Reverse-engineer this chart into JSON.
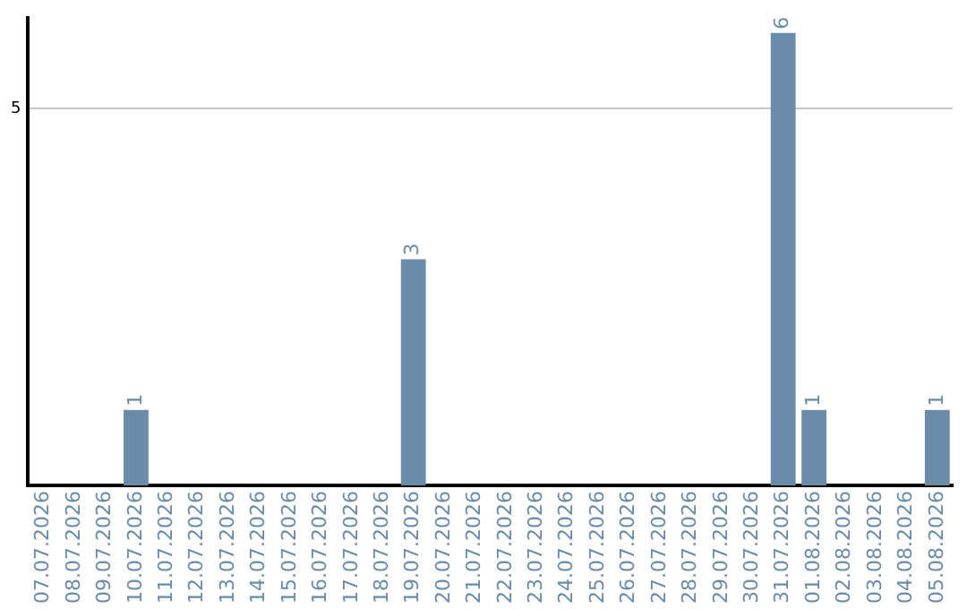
{
  "chart_data": {
    "type": "bar",
    "categories": [
      "07.07.2026",
      "08.07.2026",
      "09.07.2026",
      "10.07.2026",
      "11.07.2026",
      "12.07.2026",
      "13.07.2026",
      "14.07.2026",
      "15.07.2026",
      "16.07.2026",
      "17.07.2026",
      "18.07.2026",
      "19.07.2026",
      "20.07.2026",
      "21.07.2026",
      "22.07.2026",
      "23.07.2026",
      "24.07.2026",
      "25.07.2026",
      "26.07.2026",
      "27.07.2026",
      "28.07.2026",
      "29.07.2026",
      "30.07.2026",
      "31.07.2026",
      "01.08.2026",
      "02.08.2026",
      "03.08.2026",
      "04.08.2026",
      "05.08.2026"
    ],
    "values": [
      0,
      0,
      0,
      1,
      0,
      0,
      0,
      0,
      0,
      0,
      0,
      0,
      3,
      0,
      0,
      0,
      0,
      0,
      0,
      0,
      0,
      0,
      0,
      0,
      6,
      1,
      0,
      0,
      0,
      1
    ],
    "value_labels": [
      null,
      null,
      null,
      "1",
      null,
      null,
      null,
      null,
      null,
      null,
      null,
      null,
      "3",
      null,
      null,
      null,
      null,
      null,
      null,
      null,
      null,
      null,
      null,
      null,
      "6",
      "1",
      null,
      null,
      null,
      "1"
    ],
    "color": "#6a8caa",
    "ylim": [
      0,
      6.2
    ],
    "yticks": [
      5
    ],
    "grid": "y"
  }
}
